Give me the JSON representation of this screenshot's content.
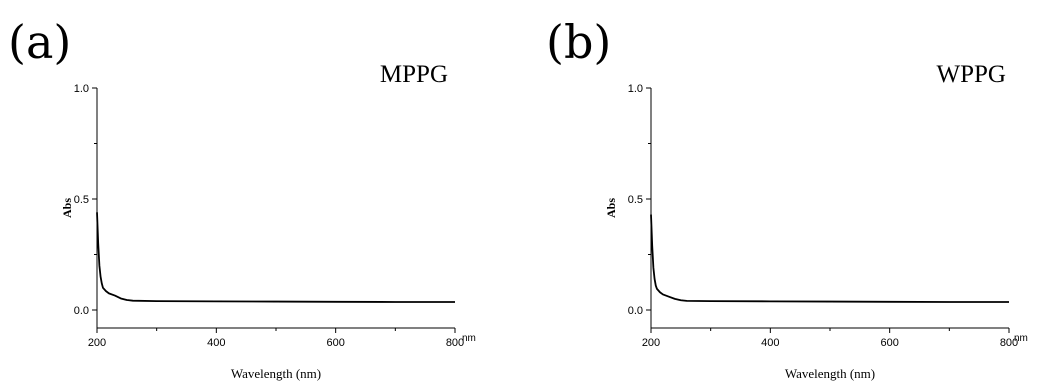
{
  "chart_data": [
    {
      "type": "line",
      "panel_label": "(a)",
      "title": "MPPG",
      "xlabel": "Wavelength (nm)",
      "ylabel": "Abs",
      "x_unit_label": "nm",
      "xlim": [
        200,
        800
      ],
      "ylim": [
        0,
        1.0
      ],
      "xticks": [
        200,
        400,
        600,
        800
      ],
      "yticks": [
        0.0,
        0.5,
        1.0
      ],
      "xtick_labels": [
        "200",
        "400",
        "600",
        "800"
      ],
      "ytick_labels": [
        "0.0",
        "0.5",
        "1.0"
      ],
      "grid": false,
      "series": [
        {
          "x": [
            200,
            202,
            204,
            206,
            208,
            210,
            215,
            220,
            230,
            240,
            250,
            260,
            300,
            400,
            500,
            600,
            700,
            800
          ],
          "y": [
            0.44,
            0.3,
            0.2,
            0.15,
            0.12,
            0.1,
            0.085,
            0.075,
            0.065,
            0.052,
            0.045,
            0.042,
            0.04,
            0.039,
            0.038,
            0.037,
            0.036,
            0.036
          ]
        }
      ]
    },
    {
      "type": "line",
      "panel_label": "(b)",
      "title": "WPPG",
      "xlabel": "Wavelength (nm)",
      "ylabel": "Abs",
      "x_unit_label": "nm",
      "xlim": [
        200,
        800
      ],
      "ylim": [
        0,
        1.0
      ],
      "xticks": [
        200,
        400,
        600,
        800
      ],
      "yticks": [
        0.0,
        0.5,
        1.0
      ],
      "xtick_labels": [
        "200",
        "400",
        "600",
        "800"
      ],
      "ytick_labels": [
        "0.0",
        "0.5",
        "1.0"
      ],
      "grid": false,
      "series": [
        {
          "x": [
            200,
            202,
            204,
            206,
            208,
            210,
            215,
            220,
            230,
            240,
            250,
            260,
            300,
            400,
            500,
            600,
            700,
            800
          ],
          "y": [
            0.43,
            0.29,
            0.19,
            0.14,
            0.11,
            0.095,
            0.08,
            0.07,
            0.06,
            0.05,
            0.044,
            0.041,
            0.04,
            0.039,
            0.038,
            0.037,
            0.036,
            0.036
          ]
        }
      ]
    }
  ]
}
